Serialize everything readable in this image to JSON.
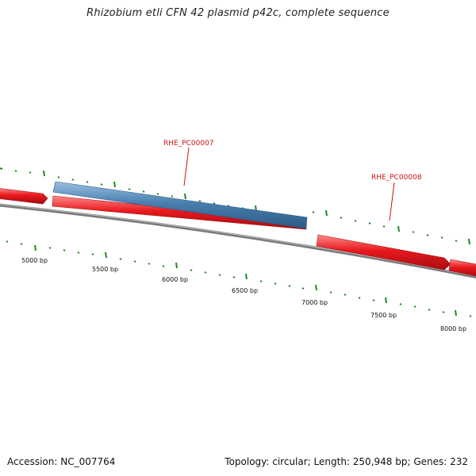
{
  "title": "Rhizobium etli CFN 42 plasmid p42c, complete sequence",
  "footer": {
    "accession": "Accession: NC_007764",
    "summary": "Topology: circular; Length: 250,948 bp; Genes: 232"
  },
  "colors": {
    "forward_gene": "#e8191e",
    "reverse_gene": "#4a7fb0",
    "backbone": "#7a7a7a",
    "tick": "#1f8a1f",
    "label": "#cc1111"
  },
  "position_labels": [
    "5000 bp",
    "5500 bp",
    "6000 bp",
    "6500 bp",
    "7000 bp",
    "7500 bp",
    "8000 bp"
  ],
  "gene_labels": [
    "RHE_PC00007",
    "RHE_PC00008"
  ]
}
